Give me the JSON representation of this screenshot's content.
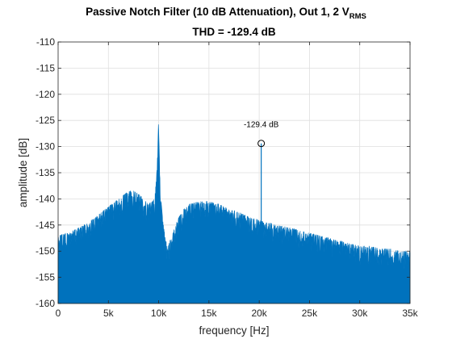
{
  "chart_data": {
    "type": "area",
    "title_main": "Passive Notch Filter (10 dB Attenuation), Out 1, 2 V",
    "title_subscript": "RMS",
    "subtitle": "THD = -129.4 dB",
    "xlabel": "frequency [Hz]",
    "ylabel": "amplitude [dB]",
    "xlim": [
      0,
      35000
    ],
    "ylim": [
      -160,
      -110
    ],
    "xticks": [
      0,
      5000,
      10000,
      15000,
      20000,
      25000,
      30000,
      35000
    ],
    "xtick_labels": [
      "0",
      "5k",
      "10k",
      "15k",
      "20k",
      "25k",
      "30k",
      "35k"
    ],
    "yticks": [
      -160,
      -155,
      -150,
      -145,
      -140,
      -135,
      -130,
      -125,
      -120,
      -115,
      -110
    ],
    "ytick_labels": [
      "-160",
      "-155",
      "-150",
      "-145",
      "-140",
      "-135",
      "-130",
      "-125",
      "-120",
      "-115",
      "-110"
    ],
    "grid": true,
    "color": "#0072bd",
    "series": [
      {
        "envelope_upper": {
          "x": [
            0,
            1000,
            2000,
            3000,
            4000,
            5000,
            6000,
            7000,
            7500,
            8000,
            9000,
            9600,
            9850,
            9950,
            10000,
            10050,
            10150,
            10400,
            10700,
            11000,
            11500,
            12000,
            12500,
            13000,
            14000,
            15000,
            16000,
            17000,
            18000,
            19000,
            20000,
            20500,
            21000,
            22000,
            23000,
            24000,
            25000,
            26000,
            27000,
            28000,
            29000,
            30000,
            31000,
            32000,
            33000,
            34000,
            35000
          ],
          "y": [
            -147,
            -146.5,
            -145.5,
            -144.5,
            -143,
            -141.5,
            -140,
            -138.5,
            -138.5,
            -139,
            -141,
            -140,
            -134,
            -126,
            -125.5,
            -130,
            -138,
            -144,
            -148,
            -148.5,
            -146,
            -143.5,
            -142,
            -141,
            -140.5,
            -140.5,
            -141,
            -142,
            -142.5,
            -143.5,
            -144,
            -144.5,
            -144.5,
            -145,
            -145.5,
            -146,
            -146.5,
            -147,
            -147.5,
            -148,
            -148.5,
            -149,
            -149,
            -149.5,
            -149.5,
            -150,
            -150
          ]
        },
        "envelope_lower": {
          "x": [
            0,
            5000,
            7000,
            9000,
            10000,
            11000,
            15000,
            20000,
            25000,
            30000,
            35000
          ],
          "y": [
            -151,
            -147.5,
            -145.5,
            -148,
            -153,
            -152,
            -148.5,
            -150.5,
            -152.5,
            -154,
            -155
          ]
        }
      }
    ],
    "harmonic_marker": {
      "x": 20200,
      "y": -129.4,
      "label": "-129.4 dB"
    }
  }
}
